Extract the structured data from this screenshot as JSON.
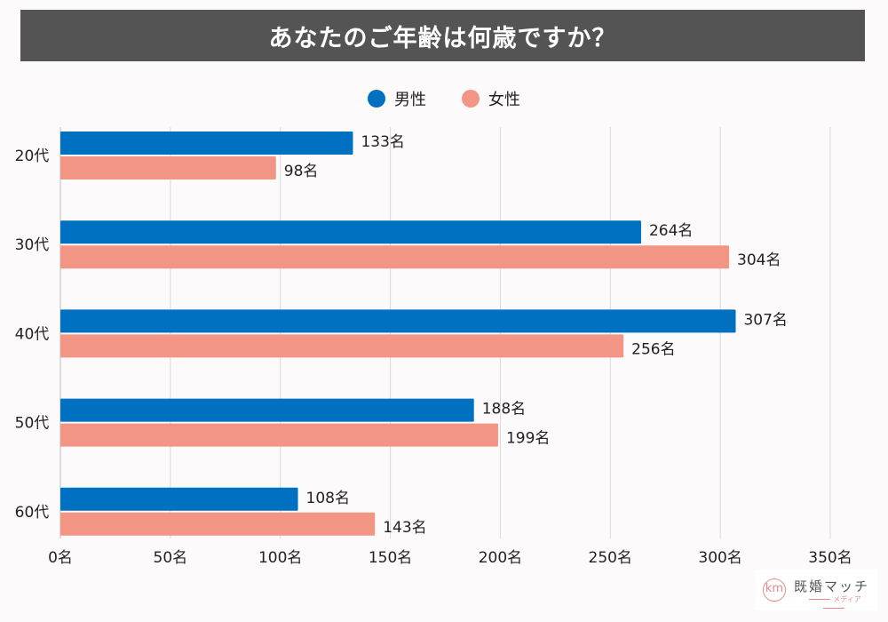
{
  "title": "あなたのご年齢は何歳ですか？",
  "legend": [
    {
      "label": "男性",
      "color": "#0070c0"
    },
    {
      "label": "女性",
      "color": "#f39585"
    }
  ],
  "logo": {
    "mark": "km",
    "name": "既婚マッチ",
    "sub": "メディア"
  },
  "chart_data": {
    "type": "bar",
    "orientation": "horizontal",
    "title": "あなたのご年齢は何歳ですか？",
    "categories": [
      "20代",
      "30代",
      "40代",
      "50代",
      "60代"
    ],
    "series": [
      {
        "name": "男性",
        "color": "#0070c0",
        "values": [
          133,
          264,
          307,
          188,
          108
        ]
      },
      {
        "name": "女性",
        "color": "#f39585",
        "values": [
          98,
          304,
          256,
          199,
          143
        ]
      }
    ],
    "value_suffix": "名",
    "xlim": [
      0,
      350
    ],
    "x_ticks": [
      0,
      50,
      100,
      150,
      200,
      250,
      300,
      350
    ],
    "x_tick_labels": [
      "0名",
      "50名",
      "100名",
      "150名",
      "200名",
      "250名",
      "300名",
      "350名"
    ],
    "grid": true,
    "legend_position": "top-center",
    "xlabel": "",
    "ylabel": ""
  }
}
